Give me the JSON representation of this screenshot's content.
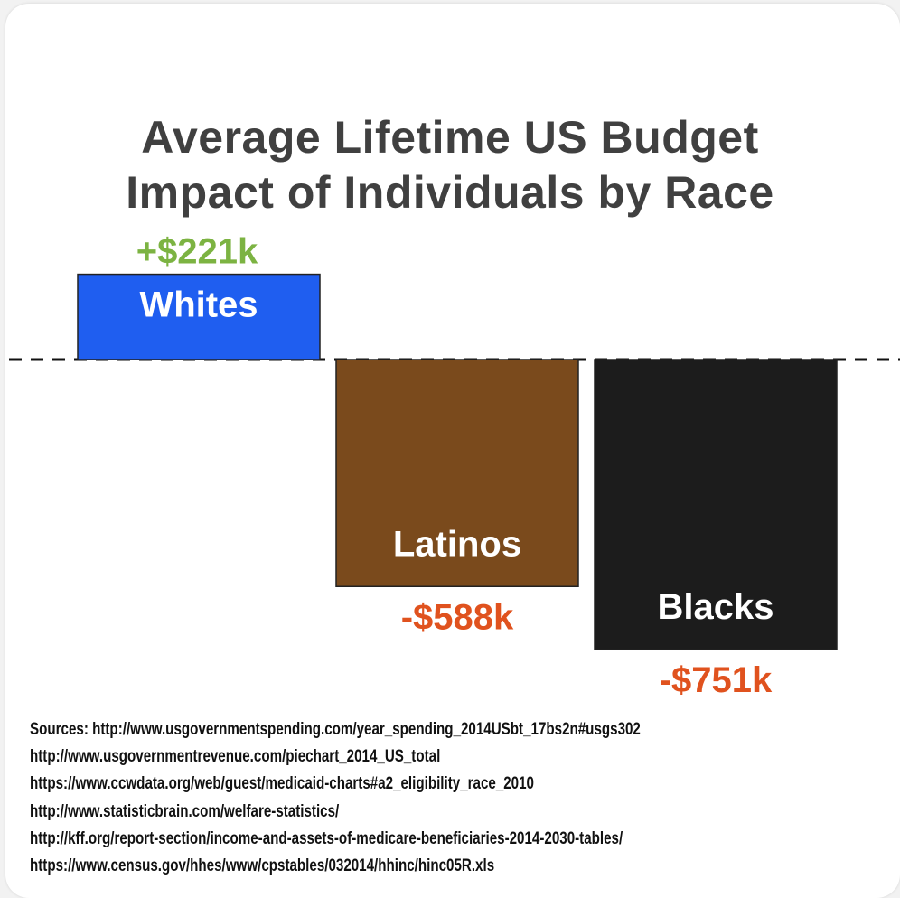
{
  "chart_data": {
    "type": "bar",
    "title_lines": [
      "Average Lifetime US Budget",
      "Impact of Individuals by Race"
    ],
    "categories": [
      "Whites",
      "Latinos",
      "Blacks"
    ],
    "values": [
      221,
      -588,
      -751
    ],
    "value_labels": [
      "+$221k",
      "-$588k",
      "-$751k"
    ],
    "unit": "thousand USD",
    "bar_colors": [
      "#1f5ef0",
      "#7a4a1c",
      "#1c1c1c"
    ],
    "positive_label_color": "#7cb342",
    "negative_label_color": "#e0521e",
    "baseline": 0,
    "baseline_style": "dashed",
    "ylim": [
      -751,
      221
    ]
  },
  "sources": [
    "Sources: http://www.usgovernmentspending.com/year_spending_2014USbt_17bs2n#usgs302",
    "http://www.usgovernmentrevenue.com/piechart_2014_US_total",
    "https://www.ccwdata.org/web/guest/medicaid-charts#a2_eligibility_race_2010",
    "http://www.statisticbrain.com/welfare-statistics/",
    "http://kff.org/report-section/income-and-assets-of-medicare-beneficiaries-2014-2030-tables/",
    "https://www.census.gov/hhes/www/cpstables/032014/hhinc/hinc05R.xls"
  ]
}
